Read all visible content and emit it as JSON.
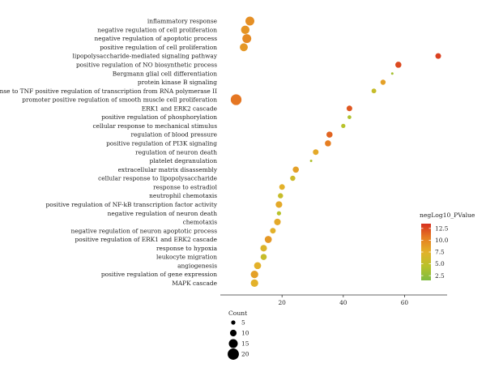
{
  "chart_data": {
    "type": "scatter",
    "title": "",
    "xlabel": "",
    "ylabel": "",
    "xlim": [
      0,
      75
    ],
    "x_ticks": [
      20,
      40,
      60
    ],
    "terms": [
      "inflammatory response",
      "negative regulation of cell proliferation",
      "negative regulation of apoptotic process",
      "positive regulation of cell proliferation",
      "lipopolysaccharide-mediated signaling pathway",
      "positive regulation of NO biosynthetic process",
      "Bergmann glial cell differentiation",
      "protein kinase B signaling",
      "response to TNF positive regulation of transcription from RNA polymerase II",
      "promoter positive regulation of smooth muscle cell proliferation",
      "ERK1 and ERK2 cascade",
      "positive regulation of phosphorylation",
      "cellular response to mechanical stimulus",
      "regulation of blood pressure",
      "positive regulation of PI3K signaling",
      "regulation of neuron death",
      "platelet degranulation",
      "extracellular matrix disassembly",
      "cellular response to lipopolysaccharide",
      "response to estradiol",
      "neutrophil chemotaxis",
      "positive regulation of NF-kB transcription factor activity",
      "negative regulation of neuron death",
      "chemotaxis",
      "negative regulation of neuron apoptotic process",
      "positive regulation of ERK1 and ERK2 cascade",
      "response to hypoxia",
      "leukocyte migration",
      "angiogenesis",
      "positive regulation of gene expression",
      "MAPK cascade"
    ],
    "points": [
      {
        "term": "inflammatory response",
        "x": 9.5,
        "count": 15,
        "negLog10_PValue": 9.5
      },
      {
        "term": "negative regulation of cell proliferation",
        "x": 8.0,
        "count": 14,
        "negLog10_PValue": 9.2
      },
      {
        "term": "negative regulation of apoptotic process",
        "x": 8.5,
        "count": 15,
        "negLog10_PValue": 9.8
      },
      {
        "term": "positive regulation of cell proliferation",
        "x": 7.5,
        "count": 13,
        "negLog10_PValue": 9.0
      },
      {
        "term": "lipopolysaccharide-mediated signaling pathway",
        "x": 71,
        "count": 8,
        "negLog10_PValue": 12.9
      },
      {
        "term": "positive regulation of NO biosynthetic process",
        "x": 58,
        "count": 9,
        "negLog10_PValue": 12.5
      },
      {
        "term": "Bergmann glial cell differentiation",
        "x": 56,
        "count": 1,
        "negLog10_PValue": 3.5
      },
      {
        "term": "protein kinase B signaling",
        "x": 53,
        "count": 7,
        "negLog10_PValue": 8.5
      },
      {
        "term": "response to TNF positive regulation of transcription from RNA polymerase II",
        "x": 50,
        "count": 6,
        "negLog10_PValue": 5.5
      },
      {
        "term": "promoter positive regulation of smooth muscle cell proliferation",
        "x": 5,
        "count": 19,
        "negLog10_PValue": 10.8
      },
      {
        "term": "ERK1 and ERK2 cascade",
        "x": 42,
        "count": 8,
        "negLog10_PValue": 12.0
      },
      {
        "term": "positive regulation of phosphorylation",
        "x": 42,
        "count": 4,
        "negLog10_PValue": 4.0
      },
      {
        "term": "cellular response to mechanical stimulus",
        "x": 40,
        "count": 5,
        "negLog10_PValue": 4.5
      },
      {
        "term": "regulation of blood pressure",
        "x": 35.5,
        "count": 9,
        "negLog10_PValue": 11.5
      },
      {
        "term": "positive regulation of PI3K signaling",
        "x": 35,
        "count": 9,
        "negLog10_PValue": 10.5
      },
      {
        "term": "regulation of neuron death",
        "x": 31,
        "count": 8,
        "negLog10_PValue": 8.0
      },
      {
        "term": "platelet degranulation",
        "x": 29.5,
        "count": 1,
        "negLog10_PValue": 4.0
      },
      {
        "term": "extracellular matrix disassembly",
        "x": 24.5,
        "count": 9,
        "negLog10_PValue": 8.5
      },
      {
        "term": "cellular response to lipopolysaccharide",
        "x": 23.5,
        "count": 7,
        "negLog10_PValue": 6.0
      },
      {
        "term": "response to estradiol",
        "x": 20,
        "count": 8,
        "negLog10_PValue": 7.5
      },
      {
        "term": "neutrophil chemotaxis",
        "x": 19.5,
        "count": 7,
        "negLog10_PValue": 5.5
      },
      {
        "term": "positive regulation of NF-kB transcription factor activity",
        "x": 19,
        "count": 10,
        "negLog10_PValue": 8.0
      },
      {
        "term": "negative regulation of neuron death",
        "x": 19,
        "count": 5,
        "negLog10_PValue": 4.5
      },
      {
        "term": "chemotaxis",
        "x": 18.5,
        "count": 10,
        "negLog10_PValue": 8.0
      },
      {
        "term": "negative regulation of neuron apoptotic process",
        "x": 17,
        "count": 8,
        "negLog10_PValue": 7.5
      },
      {
        "term": "positive regulation of ERK1 and ERK2 cascade",
        "x": 15.5,
        "count": 11,
        "negLog10_PValue": 9.0
      },
      {
        "term": "response to hypoxia",
        "x": 14,
        "count": 10,
        "negLog10_PValue": 7.0
      },
      {
        "term": "leukocyte migration",
        "x": 14,
        "count": 9,
        "negLog10_PValue": 5.5
      },
      {
        "term": "angiogenesis",
        "x": 12,
        "count": 11,
        "negLog10_PValue": 7.5
      },
      {
        "term": "positive regulation of gene expression",
        "x": 11,
        "count": 12,
        "negLog10_PValue": 8.5
      },
      {
        "term": "MAPK cascade",
        "x": 11,
        "count": 12,
        "negLog10_PValue": 7.5
      }
    ],
    "color_legend": {
      "title": "negLog10_PValue",
      "ticks": [
        2.5,
        5.0,
        7.5,
        10.0,
        12.5
      ],
      "tick_labels": [
        "2.5",
        "5.0",
        "7.5",
        "10.0",
        "12.5"
      ],
      "range": [
        1.5,
        13.5
      ],
      "colors": [
        "#7fbc41",
        "#b8c22a",
        "#e3b12a",
        "#e67e22",
        "#d7301f"
      ]
    },
    "size_legend": {
      "title": "Count",
      "values": [
        5,
        10,
        15,
        20
      ],
      "labels": [
        "5",
        "10",
        "15",
        "20"
      ]
    },
    "grid": false,
    "legend_position": "right"
  }
}
